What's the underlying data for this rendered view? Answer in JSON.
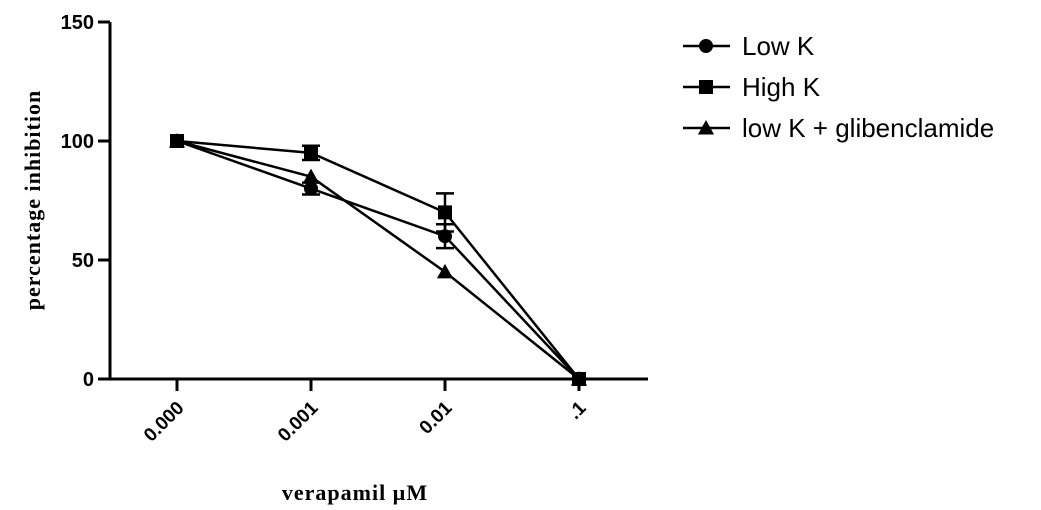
{
  "chart_data": {
    "type": "line",
    "categories": [
      "0.000",
      "0.001",
      "0.01",
      ".1"
    ],
    "ylabel": "percentage inhibition",
    "xlabel": "verapamil µM",
    "ylim": [
      0,
      150
    ],
    "yticks": [
      "0",
      "50",
      "100",
      "150"
    ],
    "legend_position": "top-right",
    "series": [
      {
        "name": "Low K",
        "marker": "circle",
        "values": [
          100,
          80,
          60,
          0
        ],
        "errors": [
          0,
          2.5,
          5,
          0
        ]
      },
      {
        "name": "High K",
        "marker": "square",
        "values": [
          100,
          95,
          70,
          0
        ],
        "errors": [
          0,
          3,
          8,
          0
        ]
      },
      {
        "name": "low K + glibenclamide",
        "marker": "triangle",
        "values": [
          100,
          85,
          45,
          0
        ],
        "errors": [
          0,
          0,
          0,
          0
        ]
      }
    ]
  }
}
